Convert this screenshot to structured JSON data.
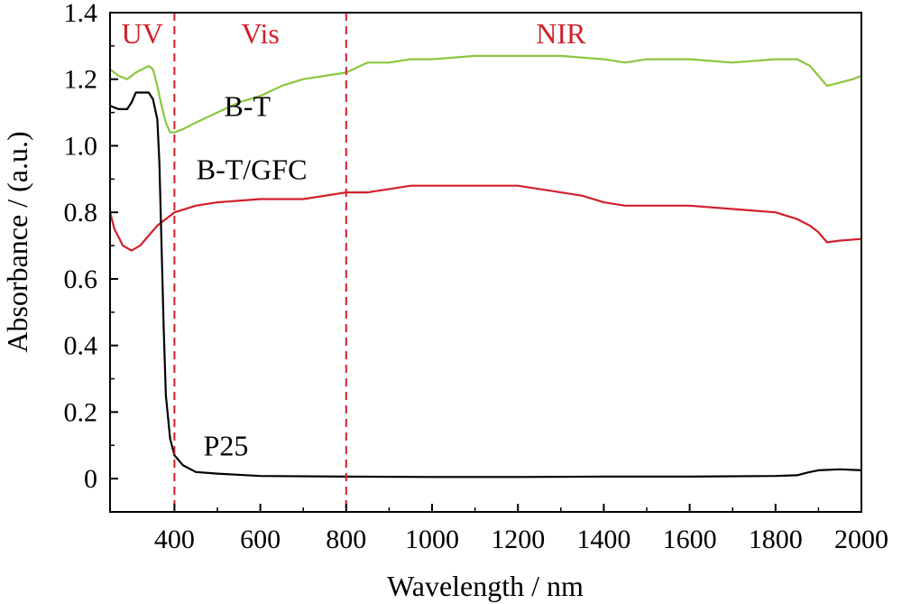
{
  "chart_data": {
    "type": "line",
    "xlabel": "Wavelength / nm",
    "ylabel": "Absorbance / (a.u.)",
    "xlim": [
      250,
      2000
    ],
    "ylim": [
      -0.1,
      1.4
    ],
    "x_ticks": [
      400,
      600,
      800,
      1000,
      1200,
      1400,
      1600,
      1800,
      2000
    ],
    "y_ticks": [
      0,
      0.2,
      0.4,
      0.6,
      0.8,
      1.0,
      1.2,
      1.4
    ],
    "y_tick_labels": [
      "0",
      "0.2",
      "0.4",
      "0.6",
      "0.8",
      "1.0",
      "1.2",
      "1.4"
    ],
    "grid": false,
    "region_dividers": [
      400,
      800
    ],
    "region_color": "#d0202a",
    "regions": [
      {
        "label": "UV",
        "x": 325
      },
      {
        "label": "Vis",
        "x": 600
      },
      {
        "label": "NIR",
        "x": 1300
      }
    ],
    "series": [
      {
        "name": "B-T",
        "color": "#8cc63f",
        "label_at": [
          570,
          1.09
        ],
        "points": [
          [
            250,
            1.23
          ],
          [
            270,
            1.21
          ],
          [
            290,
            1.2
          ],
          [
            310,
            1.22
          ],
          [
            325,
            1.23
          ],
          [
            340,
            1.24
          ],
          [
            350,
            1.23
          ],
          [
            360,
            1.18
          ],
          [
            370,
            1.12
          ],
          [
            380,
            1.07
          ],
          [
            390,
            1.04
          ],
          [
            400,
            1.04
          ],
          [
            420,
            1.05
          ],
          [
            450,
            1.07
          ],
          [
            500,
            1.1
          ],
          [
            550,
            1.13
          ],
          [
            600,
            1.15
          ],
          [
            650,
            1.18
          ],
          [
            700,
            1.2
          ],
          [
            750,
            1.21
          ],
          [
            800,
            1.22
          ],
          [
            850,
            1.25
          ],
          [
            900,
            1.25
          ],
          [
            950,
            1.26
          ],
          [
            1000,
            1.26
          ],
          [
            1100,
            1.27
          ],
          [
            1200,
            1.27
          ],
          [
            1300,
            1.27
          ],
          [
            1400,
            1.26
          ],
          [
            1450,
            1.25
          ],
          [
            1500,
            1.26
          ],
          [
            1600,
            1.26
          ],
          [
            1700,
            1.25
          ],
          [
            1800,
            1.26
          ],
          [
            1850,
            1.26
          ],
          [
            1880,
            1.24
          ],
          [
            1900,
            1.21
          ],
          [
            1920,
            1.18
          ],
          [
            1950,
            1.19
          ],
          [
            1980,
            1.2
          ],
          [
            2000,
            1.21
          ]
        ]
      },
      {
        "name": "B-T/GFC",
        "color": "#d0202a",
        "label_at": [
          580,
          0.9
        ],
        "points": [
          [
            250,
            0.8
          ],
          [
            260,
            0.75
          ],
          [
            280,
            0.7
          ],
          [
            300,
            0.685
          ],
          [
            320,
            0.7
          ],
          [
            340,
            0.73
          ],
          [
            360,
            0.76
          ],
          [
            380,
            0.78
          ],
          [
            400,
            0.8
          ],
          [
            450,
            0.82
          ],
          [
            500,
            0.83
          ],
          [
            600,
            0.84
          ],
          [
            700,
            0.84
          ],
          [
            800,
            0.86
          ],
          [
            850,
            0.86
          ],
          [
            900,
            0.87
          ],
          [
            950,
            0.88
          ],
          [
            1000,
            0.88
          ],
          [
            1100,
            0.88
          ],
          [
            1200,
            0.88
          ],
          [
            1300,
            0.86
          ],
          [
            1350,
            0.85
          ],
          [
            1400,
            0.83
          ],
          [
            1450,
            0.82
          ],
          [
            1500,
            0.82
          ],
          [
            1600,
            0.82
          ],
          [
            1700,
            0.81
          ],
          [
            1800,
            0.8
          ],
          [
            1850,
            0.78
          ],
          [
            1880,
            0.76
          ],
          [
            1900,
            0.74
          ],
          [
            1920,
            0.71
          ],
          [
            1950,
            0.715
          ],
          [
            2000,
            0.72
          ]
        ]
      },
      {
        "name": "P25",
        "color": "#000000",
        "label_at": [
          520,
          0.07
        ],
        "points": [
          [
            250,
            1.12
          ],
          [
            270,
            1.11
          ],
          [
            290,
            1.11
          ],
          [
            300,
            1.13
          ],
          [
            310,
            1.16
          ],
          [
            320,
            1.16
          ],
          [
            340,
            1.16
          ],
          [
            350,
            1.14
          ],
          [
            360,
            1.08
          ],
          [
            365,
            0.95
          ],
          [
            370,
            0.7
          ],
          [
            375,
            0.45
          ],
          [
            380,
            0.25
          ],
          [
            390,
            0.12
          ],
          [
            400,
            0.07
          ],
          [
            420,
            0.04
          ],
          [
            450,
            0.02
          ],
          [
            500,
            0.015
          ],
          [
            600,
            0.008
          ],
          [
            800,
            0.006
          ],
          [
            1000,
            0.005
          ],
          [
            1200,
            0.005
          ],
          [
            1400,
            0.006
          ],
          [
            1600,
            0.006
          ],
          [
            1800,
            0.008
          ],
          [
            1850,
            0.01
          ],
          [
            1880,
            0.02
          ],
          [
            1900,
            0.025
          ],
          [
            1950,
            0.028
          ],
          [
            2000,
            0.025
          ]
        ]
      }
    ]
  }
}
